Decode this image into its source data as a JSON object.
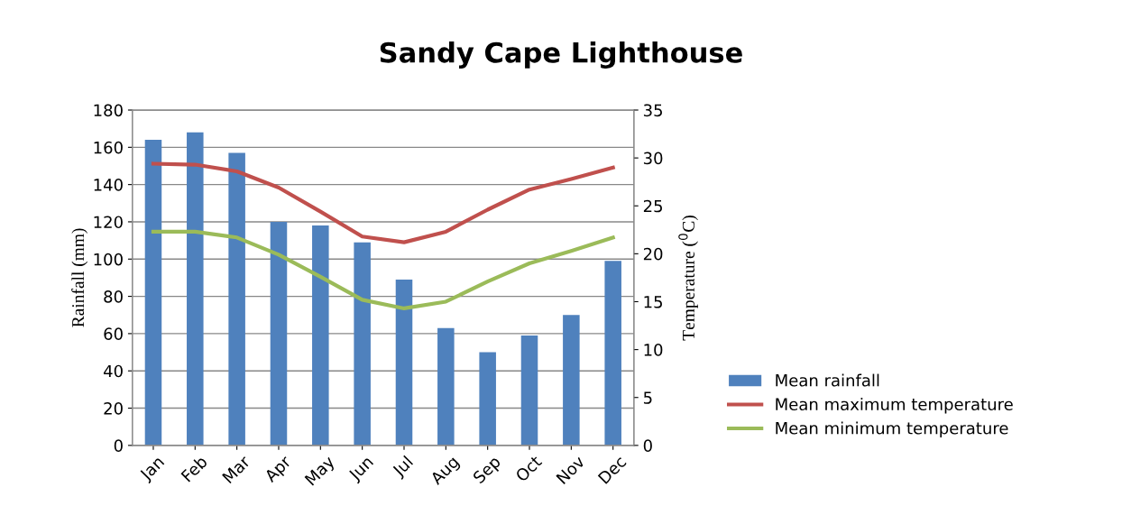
{
  "chart_data": {
    "type": "bar",
    "title": "Sandy Cape Lighthouse",
    "categories": [
      "Jan",
      "Feb",
      "Mar",
      "Apr",
      "May",
      "Jun",
      "Jul",
      "Aug",
      "Sep",
      "Oct",
      "Nov",
      "Dec"
    ],
    "series": [
      {
        "name": "Mean rainfall",
        "color": "#4f81bd",
        "values": [
          164,
          168,
          157,
          120,
          118,
          109,
          89,
          63,
          50,
          59,
          70,
          99
        ]
      },
      {
        "name": "Mean maximum temperature",
        "type": "line",
        "axis": "y2",
        "color": "#c0504d",
        "values": [
          29.4,
          29.3,
          28.6,
          26.9,
          24.4,
          21.8,
          21.2,
          22.3,
          24.6,
          26.7,
          27.8,
          29.0
        ]
      },
      {
        "name": "Mean minimum temperature",
        "type": "line",
        "axis": "y2",
        "color": "#9bbb59",
        "values": [
          22.3,
          22.3,
          21.7,
          19.9,
          17.6,
          15.2,
          14.3,
          15.0,
          17.1,
          19.0,
          20.3,
          21.7
        ]
      }
    ],
    "ylabel": "Rainfall (mm)",
    "y2label": "Temperature ($^{0}$C)",
    "ylim": [
      0,
      180
    ],
    "yticks": [
      0,
      20,
      40,
      60,
      80,
      100,
      120,
      140,
      160,
      180
    ],
    "y2lim": [
      0,
      35
    ],
    "y2ticks": [
      0,
      5,
      10,
      15,
      20,
      25,
      30,
      35
    ],
    "grid": "y",
    "legend": "right",
    "marker": "none",
    "line_style": "solid"
  }
}
